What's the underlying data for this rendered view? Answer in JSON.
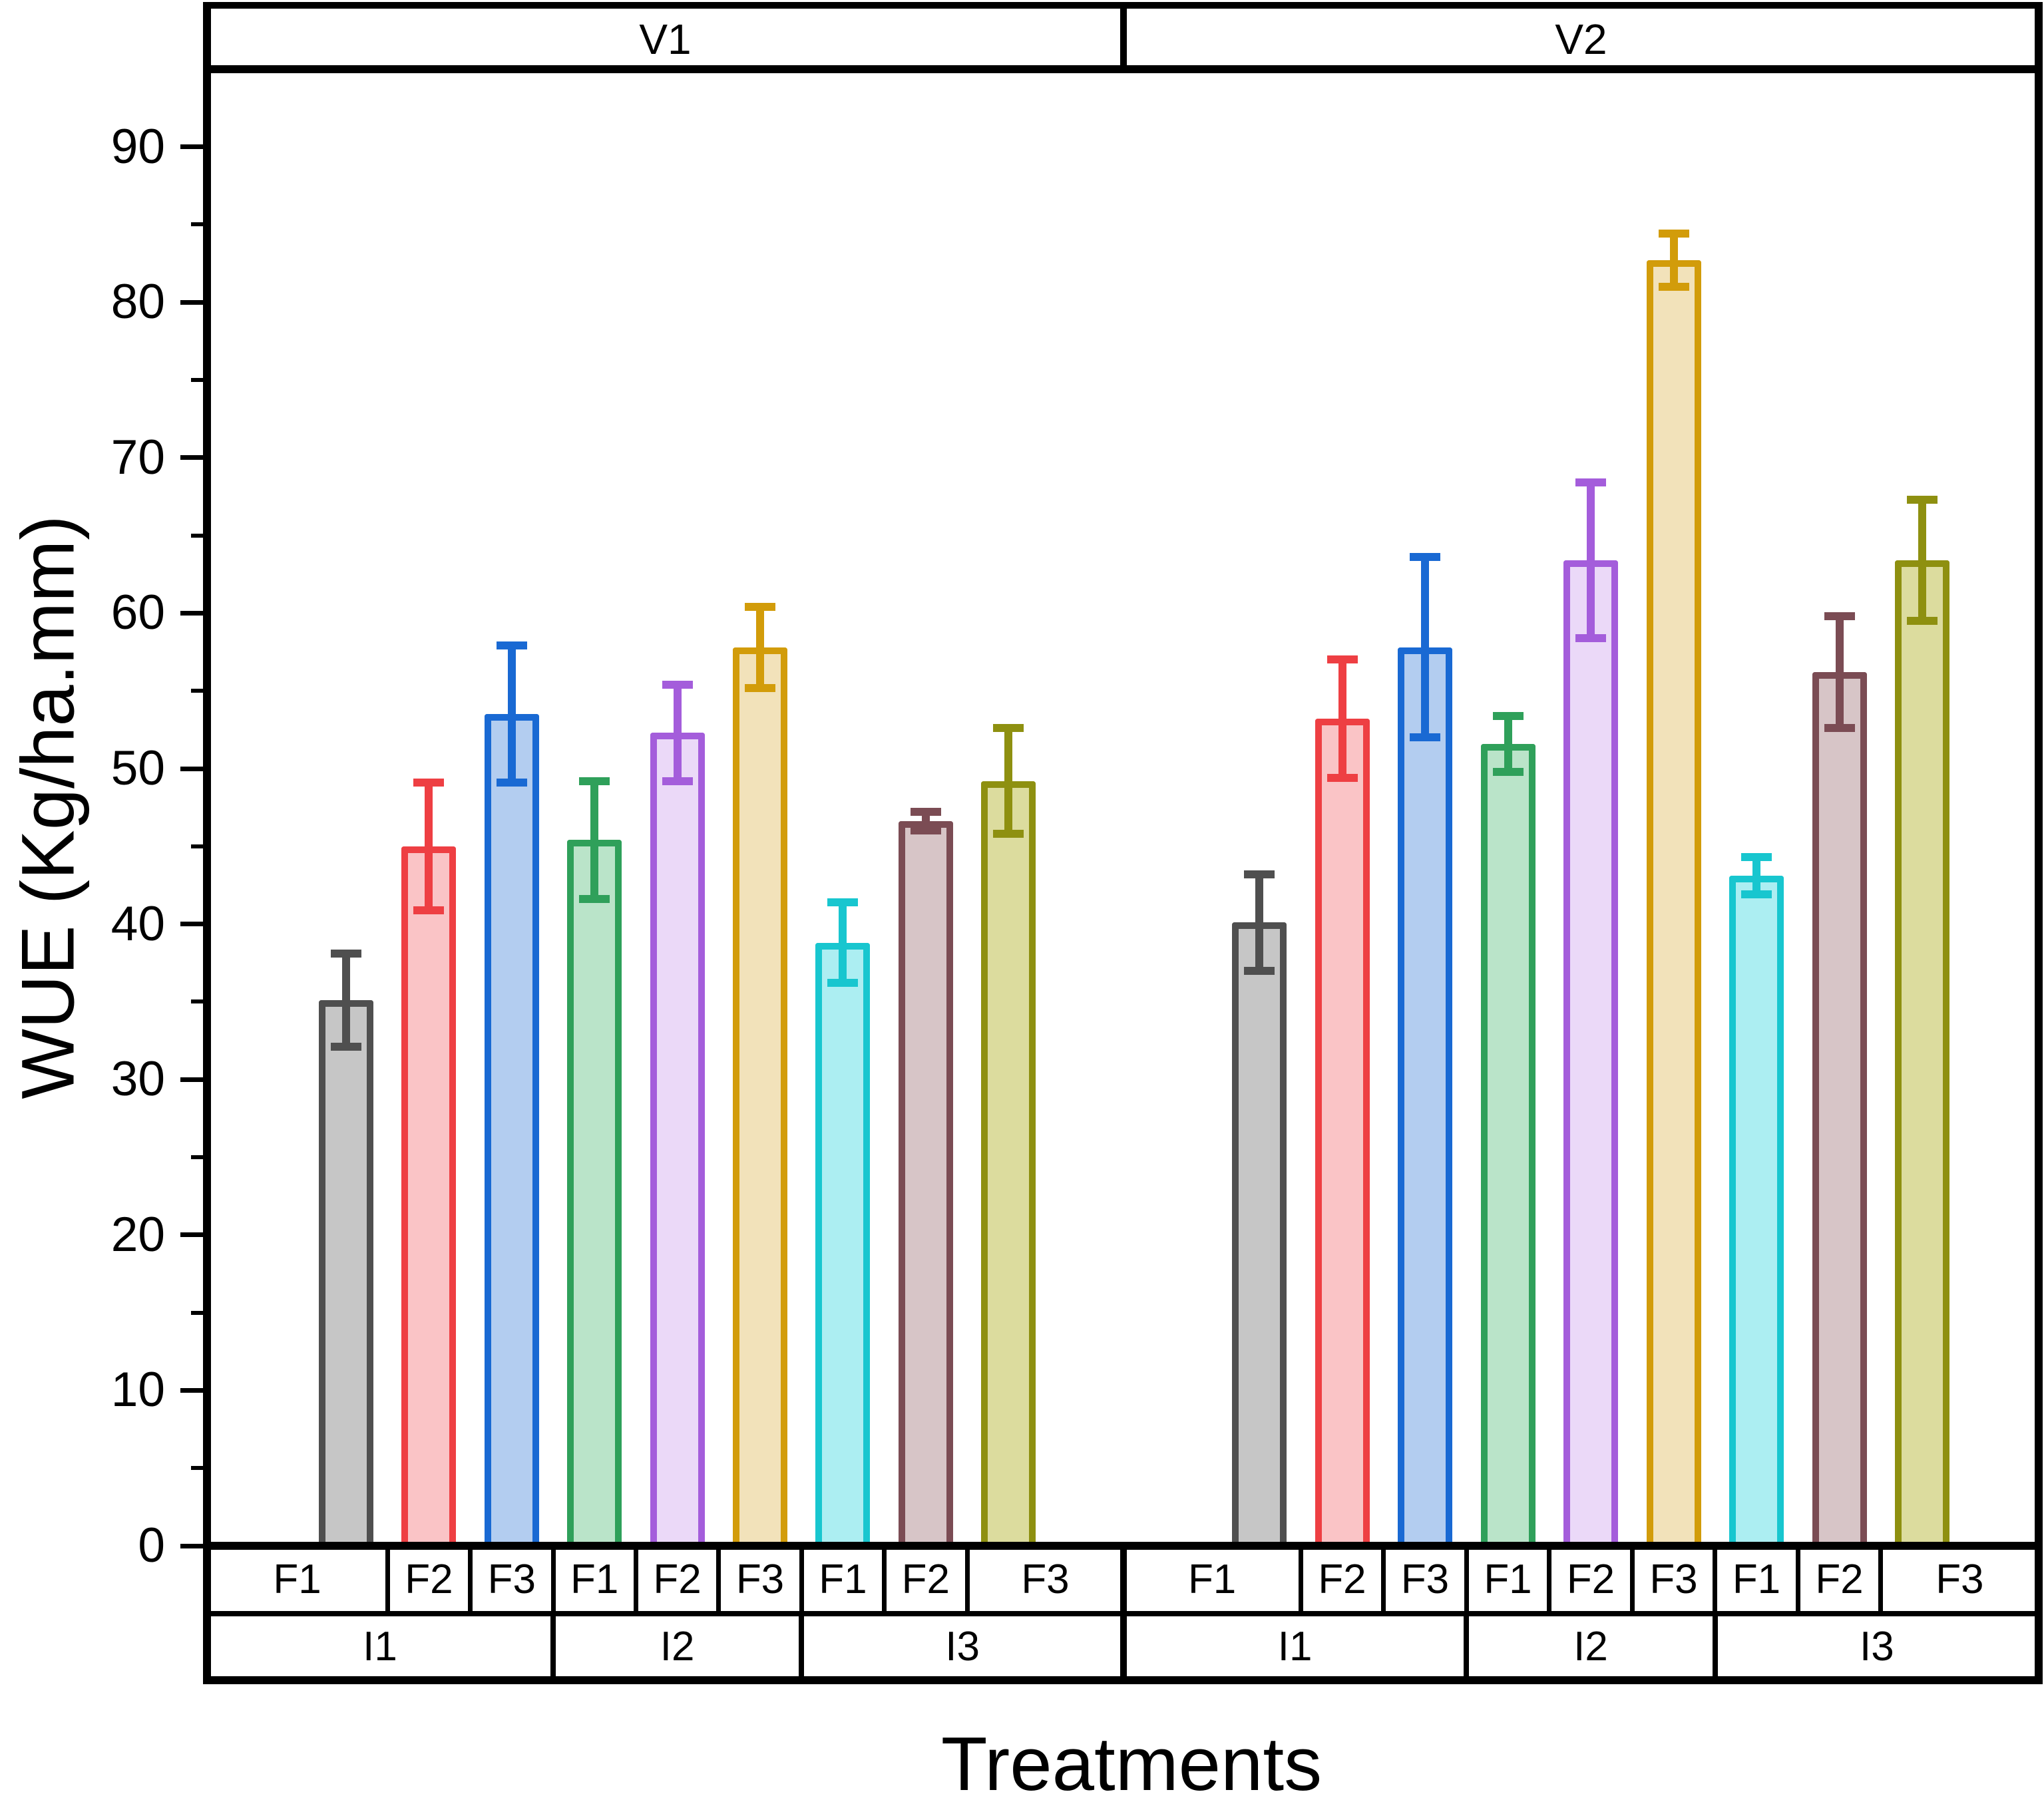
{
  "figure": {
    "y_axis_title": "WUE (Kg/ha.mm)",
    "x_axis_title": "Treatments",
    "y_ticks": [
      0,
      10,
      20,
      30,
      40,
      50,
      60,
      70,
      80,
      90
    ],
    "y_minor_ticks": [
      5,
      15,
      25,
      35,
      45,
      55,
      65,
      75,
      85
    ]
  },
  "chart_data": {
    "type": "bar",
    "title": "",
    "xlabel": "Treatments",
    "ylabel": "WUE (Kg/ha.mm)",
    "ylim": [
      0,
      95
    ],
    "grid": false,
    "legend_position": "none",
    "panel_headers": [
      "V1",
      "V2"
    ],
    "group_labels": [
      "I1",
      "I2",
      "I3"
    ],
    "bar_labels": [
      "F1",
      "F2",
      "F3"
    ],
    "panels": [
      {
        "name": "V1",
        "groups": [
          {
            "name": "I1",
            "bars": [
              {
                "label": "F1",
                "series": "gray",
                "value": 35.1,
                "err": 3.0
              },
              {
                "label": "F2",
                "series": "red",
                "value": 45.0,
                "err": 4.1
              },
              {
                "label": "F3",
                "series": "blue",
                "value": 53.5,
                "err": 4.4
              }
            ]
          },
          {
            "name": "I2",
            "bars": [
              {
                "label": "F1",
                "series": "green",
                "value": 45.4,
                "err": 3.8
              },
              {
                "label": "F2",
                "series": "purple",
                "value": 52.3,
                "err": 3.1
              },
              {
                "label": "F3",
                "series": "gold",
                "value": 57.8,
                "err": 2.6
              }
            ]
          },
          {
            "name": "I3",
            "bars": [
              {
                "label": "F1",
                "series": "cyan",
                "value": 38.8,
                "err": 2.6
              },
              {
                "label": "F2",
                "series": "brown",
                "value": 46.6,
                "err": 0.6
              },
              {
                "label": "F3",
                "series": "olive",
                "value": 49.2,
                "err": 3.4
              }
            ]
          }
        ]
      },
      {
        "name": "V2",
        "groups": [
          {
            "name": "I1",
            "bars": [
              {
                "label": "F1",
                "series": "gray",
                "value": 40.1,
                "err": 3.1
              },
              {
                "label": "F2",
                "series": "red",
                "value": 53.2,
                "err": 3.8
              },
              {
                "label": "F3",
                "series": "blue",
                "value": 57.8,
                "err": 5.8
              }
            ]
          },
          {
            "name": "I2",
            "bars": [
              {
                "label": "F1",
                "series": "green",
                "value": 51.6,
                "err": 1.8
              },
              {
                "label": "F2",
                "series": "purple",
                "value": 63.4,
                "err": 5.0
              },
              {
                "label": "F3",
                "series": "gold",
                "value": 82.7,
                "err": 1.7
              }
            ]
          },
          {
            "name": "I3",
            "bars": [
              {
                "label": "F1",
                "series": "cyan",
                "value": 43.1,
                "err": 1.2
              },
              {
                "label": "F2",
                "series": "brown",
                "value": 56.2,
                "err": 3.6
              },
              {
                "label": "F3",
                "series": "olive",
                "value": 63.4,
                "err": 3.9
              }
            ]
          }
        ]
      }
    ],
    "series_colors": {
      "gray": {
        "edge": "#4f4f4f",
        "fill": "#c6c6c6"
      },
      "red": {
        "edge": "#ee3f43",
        "fill": "#fac4c6"
      },
      "blue": {
        "edge": "#1969d3",
        "fill": "#b3cdf0"
      },
      "green": {
        "edge": "#2fa05a",
        "fill": "#bae4c9"
      },
      "purple": {
        "edge": "#a45ddb",
        "fill": "#ebd9f8"
      },
      "gold": {
        "edge": "#d29c0a",
        "fill": "#f2e2ba"
      },
      "cyan": {
        "edge": "#18c6cf",
        "fill": "#aceef2"
      },
      "brown": {
        "edge": "#7b4c54",
        "fill": "#d7c5c7"
      },
      "olive": {
        "edge": "#8e9010",
        "fill": "#dcdc9e"
      }
    },
    "axis_color": "#000000"
  }
}
